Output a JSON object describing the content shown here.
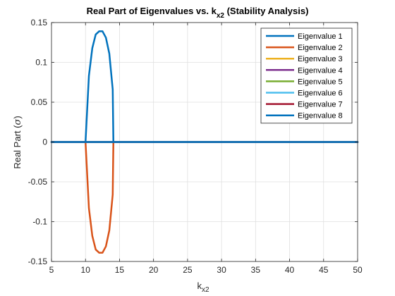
{
  "chart_data": {
    "type": "line",
    "title": "Real Part of Eigenvalues vs. k",
    "title_subscript": "x2",
    "title_suffix": " (Stability Analysis)",
    "xlabel": "k",
    "xlabel_subscript": "x2",
    "ylabel": "Real Part (",
    "ylabel_symbol": "σ",
    "ylabel_suffix": ")",
    "xlim": [
      5,
      50
    ],
    "ylim": [
      -0.15,
      0.15
    ],
    "xticks": [
      5,
      10,
      15,
      20,
      25,
      30,
      35,
      40,
      45,
      50
    ],
    "xtick_labels": [
      "5",
      "10",
      "15",
      "20",
      "25",
      "30",
      "35",
      "40",
      "45",
      "50"
    ],
    "yticks": [
      -0.15,
      -0.1,
      -0.05,
      0,
      0.05,
      0.1,
      0.15
    ],
    "ytick_labels": [
      "-0.15",
      "-0.1",
      "-0.05",
      "0",
      "0.05",
      "0.1",
      "0.15"
    ],
    "grid": true,
    "legend_position": "top-right",
    "series": [
      {
        "name": "Eigenvalue 1",
        "color": "#0072BD",
        "x": [
          5,
          9.9,
          10,
          10.5,
          11,
          11.5,
          12,
          12.5,
          13,
          13.5,
          14,
          14.1,
          50
        ],
        "y": [
          0,
          0,
          0,
          0.083,
          0.118,
          0.135,
          0.139,
          0.139,
          0.131,
          0.111,
          0.066,
          0,
          0
        ]
      },
      {
        "name": "Eigenvalue 2",
        "color": "#D95319",
        "x": [
          5,
          9.9,
          10,
          10.5,
          11,
          11.5,
          12,
          12.5,
          13,
          13.5,
          14,
          14.1,
          50
        ],
        "y": [
          0,
          0,
          0,
          -0.083,
          -0.118,
          -0.135,
          -0.139,
          -0.139,
          -0.131,
          -0.111,
          -0.066,
          0,
          0
        ]
      },
      {
        "name": "Eigenvalue 3",
        "color": "#EDB120",
        "x": [
          5,
          50
        ],
        "y": [
          0,
          0
        ]
      },
      {
        "name": "Eigenvalue 4",
        "color": "#7E2F8E",
        "x": [
          5,
          50
        ],
        "y": [
          0,
          0
        ]
      },
      {
        "name": "Eigenvalue 5",
        "color": "#77AC30",
        "x": [
          5,
          50
        ],
        "y": [
          0,
          0
        ]
      },
      {
        "name": "Eigenvalue 6",
        "color": "#4DBEEE",
        "x": [
          5,
          50
        ],
        "y": [
          0,
          0
        ]
      },
      {
        "name": "Eigenvalue 7",
        "color": "#A2142F",
        "x": [
          5,
          50
        ],
        "y": [
          0,
          0
        ]
      },
      {
        "name": "Eigenvalue 8",
        "color": "#0072BD",
        "x": [
          5,
          10,
          14.1,
          50
        ],
        "y": [
          0,
          0,
          0,
          0
        ]
      }
    ]
  }
}
